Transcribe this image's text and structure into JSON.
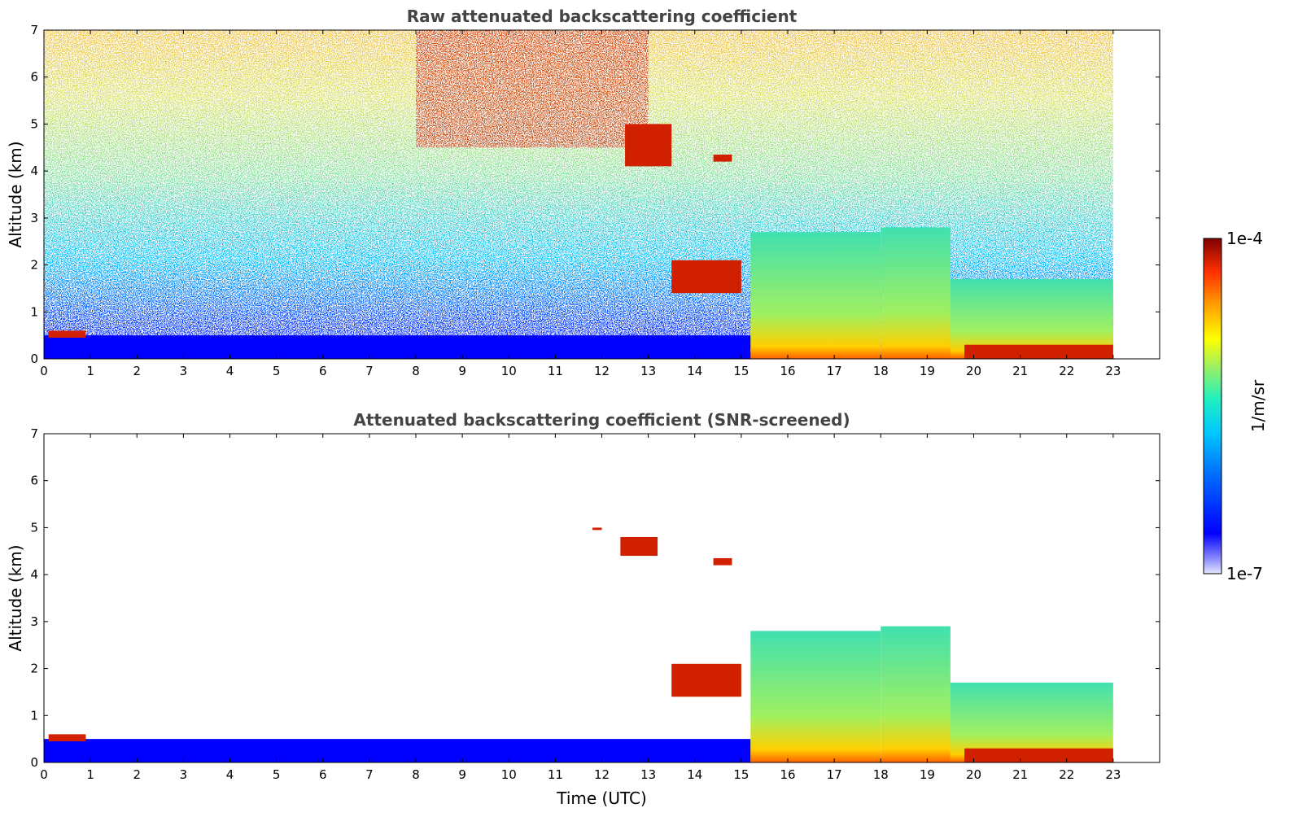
{
  "chart_data": [
    {
      "type": "heatmap",
      "title": "Raw attenuated backscattering coefficient",
      "xlabel": "",
      "ylabel": "Altitude (km)",
      "xlim": [
        0,
        24
      ],
      "ylim": [
        0,
        7
      ],
      "x_ticks": [
        "0",
        "1",
        "2",
        "3",
        "4",
        "5",
        "6",
        "7",
        "8",
        "9",
        "10",
        "11",
        "12",
        "13",
        "14",
        "15",
        "16",
        "17",
        "18",
        "19",
        "20",
        "21",
        "22",
        "23"
      ],
      "y_ticks": [
        "0",
        "1",
        "2",
        "3",
        "4",
        "5",
        "6",
        "7"
      ],
      "data_end_time": 23,
      "features": [
        {
          "x": [
            0,
            15.2
          ],
          "y": [
            0,
            0.5
          ],
          "level": "low"
        },
        {
          "x": [
            0.1,
            0.9
          ],
          "y": [
            0.45,
            0.6
          ],
          "level": "high"
        },
        {
          "x": [
            8,
            13
          ],
          "y": [
            4.5,
            7
          ],
          "level": "high"
        },
        {
          "x": [
            12.5,
            13.5
          ],
          "y": [
            4.1,
            5
          ],
          "level": "high"
        },
        {
          "x": [
            14.4,
            14.8
          ],
          "y": [
            4.2,
            4.35
          ],
          "level": "high"
        },
        {
          "x": [
            13.5,
            15
          ],
          "y": [
            1.4,
            2.1
          ],
          "level": "high"
        },
        {
          "x": [
            15.2,
            18
          ],
          "y": [
            0,
            2.7
          ],
          "level": "medium"
        },
        {
          "x": [
            18,
            19.5
          ],
          "y": [
            0,
            2.8
          ],
          "level": "medium"
        },
        {
          "x": [
            19.5,
            23
          ],
          "y": [
            0,
            1.7
          ],
          "level": "medium"
        },
        {
          "x": [
            19.8,
            23
          ],
          "y": [
            0,
            0.3
          ],
          "level": "high"
        }
      ]
    },
    {
      "type": "heatmap",
      "title": "Attenuated backscattering coefficient (SNR-screened)",
      "xlabel": "Time (UTC)",
      "ylabel": "Altitude (km)",
      "xlim": [
        0,
        24
      ],
      "ylim": [
        0,
        7
      ],
      "x_ticks": [
        "0",
        "1",
        "2",
        "3",
        "4",
        "5",
        "6",
        "7",
        "8",
        "9",
        "10",
        "11",
        "12",
        "13",
        "14",
        "15",
        "16",
        "17",
        "18",
        "19",
        "20",
        "21",
        "22",
        "23"
      ],
      "y_ticks": [
        "0",
        "1",
        "2",
        "3",
        "4",
        "5",
        "6",
        "7"
      ],
      "data_end_time": 23,
      "features": [
        {
          "x": [
            0,
            15.2
          ],
          "y": [
            0,
            0.5
          ],
          "level": "low"
        },
        {
          "x": [
            0.1,
            0.9
          ],
          "y": [
            0.45,
            0.6
          ],
          "level": "high"
        },
        {
          "x": [
            11.8,
            12
          ],
          "y": [
            4.95,
            5.0
          ],
          "level": "high"
        },
        {
          "x": [
            12.4,
            13.2
          ],
          "y": [
            4.4,
            4.8
          ],
          "level": "high"
        },
        {
          "x": [
            14.4,
            14.8
          ],
          "y": [
            4.2,
            4.35
          ],
          "level": "high"
        },
        {
          "x": [
            13.5,
            15
          ],
          "y": [
            1.4,
            2.1
          ],
          "level": "high"
        },
        {
          "x": [
            15.2,
            18
          ],
          "y": [
            0,
            2.8
          ],
          "level": "medium"
        },
        {
          "x": [
            18,
            19.5
          ],
          "y": [
            0,
            2.9
          ],
          "level": "medium"
        },
        {
          "x": [
            19.5,
            23
          ],
          "y": [
            0,
            1.7
          ],
          "level": "medium"
        },
        {
          "x": [
            19.8,
            23
          ],
          "y": [
            0,
            0.3
          ],
          "level": "high"
        }
      ]
    }
  ],
  "colorbar": {
    "max_label": "1e-4",
    "min_label": "1e-7",
    "unit_label": "1/m/sr",
    "colors": [
      "#e6e6ff",
      "#8080ff",
      "#0000ff",
      "#0060ff",
      "#00c0ff",
      "#20f0c0",
      "#a0f060",
      "#ffff00",
      "#ffa000",
      "#ff3000",
      "#c00000",
      "#800000"
    ]
  }
}
